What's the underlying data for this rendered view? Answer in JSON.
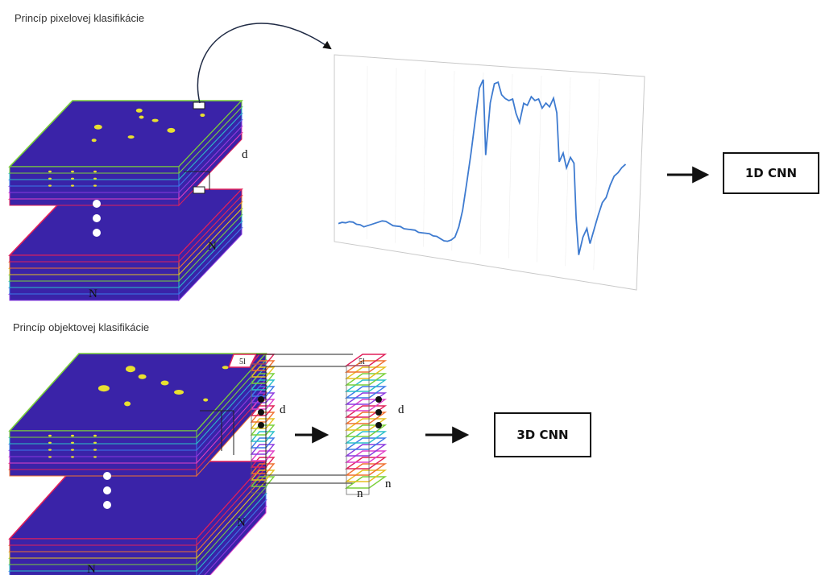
{
  "top": {
    "heading": "Princíp pixelovej klasifikácie",
    "labels": {
      "d": "d",
      "n_right": "N",
      "n_bottom": "N"
    },
    "result_box": "1D CNN"
  },
  "bottom": {
    "heading": "Princíp objektovej klasifikácie",
    "labels": {
      "d_stack": "d",
      "d_cube": "d",
      "n_cube_bottom": "n",
      "n_cube_right": "n",
      "n_right": "N",
      "n_bottom": "N"
    },
    "result_box": "3D CNN"
  },
  "colors": {
    "cube_fill": "#3a23a8",
    "band_colors": [
      "#e0205a",
      "#f07030",
      "#e6c020",
      "#7ad03a",
      "#2ac0c8",
      "#3a7ae8",
      "#8a3ae0",
      "#e040c8"
    ],
    "spectrum_line": "#3e7bd0",
    "vegetation": "#e8e030"
  },
  "spectrum": {
    "curve": [
      0.05,
      0.06,
      0.06,
      0.07,
      0.07,
      0.06,
      0.06,
      0.05,
      0.06,
      0.07,
      0.08,
      0.09,
      0.1,
      0.1,
      0.09,
      0.08,
      0.08,
      0.08,
      0.07,
      0.07,
      0.07,
      0.07,
      0.06,
      0.06,
      0.06,
      0.06,
      0.05,
      0.05,
      0.04,
      0.03,
      0.03,
      0.04,
      0.06,
      0.12,
      0.22,
      0.38,
      0.55,
      0.74,
      0.93,
      0.98,
      0.55,
      0.85,
      0.96,
      0.97,
      0.9,
      0.88,
      0.87,
      0.88,
      0.8,
      0.75,
      0.86,
      0.85,
      0.9,
      0.88,
      0.89,
      0.84,
      0.87,
      0.85,
      0.9,
      0.82,
      0.55,
      0.6,
      0.52,
      0.58,
      0.55,
      0.25,
      0.05,
      0.15,
      0.2,
      0.12,
      0.2,
      0.28,
      0.35,
      0.38,
      0.45,
      0.5,
      0.52,
      0.55,
      0.57
    ]
  }
}
